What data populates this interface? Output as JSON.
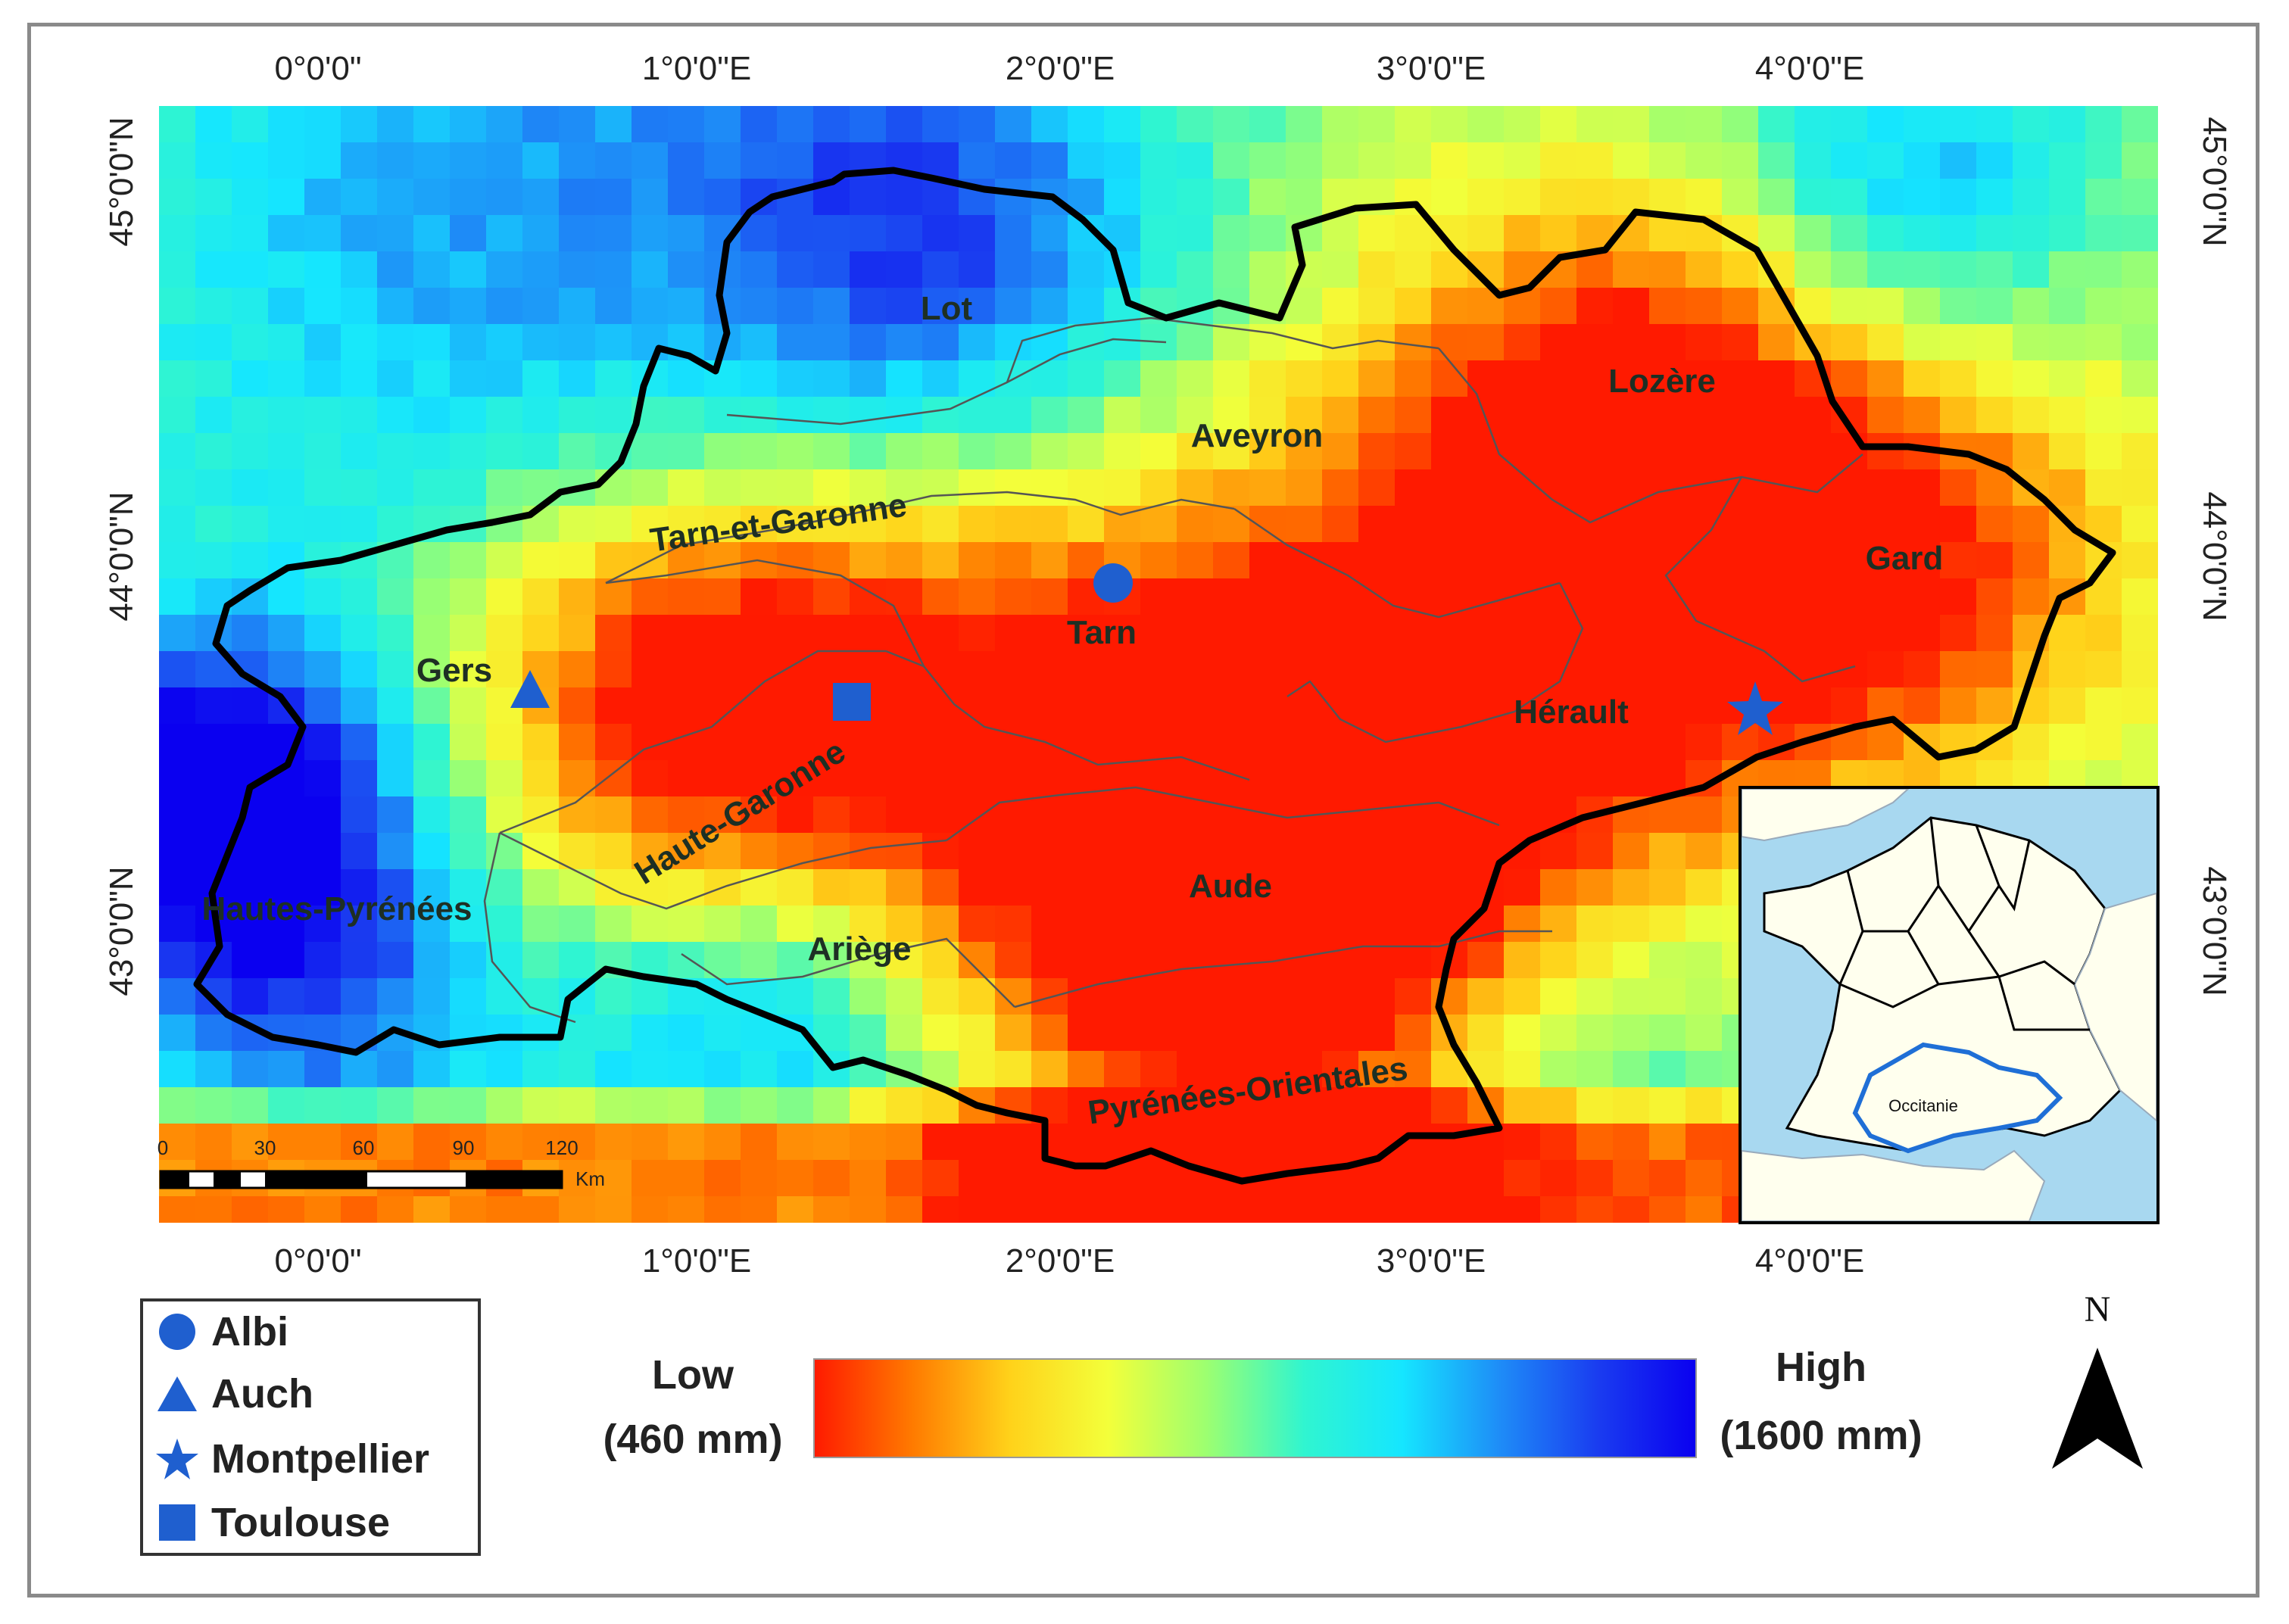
{
  "axes": {
    "lon_ticks": [
      "0°0'0\"",
      "1°0'0\"E",
      "2°0'0\"E",
      "3°0'0\"E",
      "4°0'0\"E"
    ],
    "lat_ticks": [
      "45°0'0\"N",
      "44°0'0\"N",
      "43°0'0\"N"
    ]
  },
  "departments": [
    "Lot",
    "Lozère",
    "Aveyron",
    "Tarn-et-Garonne",
    "Gard",
    "Tarn",
    "Gers",
    "Hérault",
    "Haute-Garonne",
    "Aude",
    "Hautes-Pyrénées",
    "Ariège",
    "Pyrénées-Orientales"
  ],
  "scale_bar": {
    "ticks": [
      "0",
      "30",
      "60",
      "90",
      "120"
    ],
    "unit": "Km"
  },
  "inset": {
    "label": "Occitanie"
  },
  "legend": [
    {
      "name": "Albi",
      "symbol": "circle-icon"
    },
    {
      "name": "Auch",
      "symbol": "triangle-icon"
    },
    {
      "name": "Montpellier",
      "symbol": "star-icon"
    },
    {
      "name": "Toulouse",
      "symbol": "square-icon"
    }
  ],
  "colorbar": {
    "low_label": "Low",
    "low_value": "(460 mm)",
    "high_label": "High",
    "high_value": "(1600 mm)",
    "colors": [
      "#ff1a00",
      "#ff7a00",
      "#ffd21a",
      "#f3ff3a",
      "#9dff70",
      "#30f5d0",
      "#15e6ff",
      "#1e8cf7",
      "#1a3cf0",
      "#0a00f0"
    ]
  },
  "north_arrow": {
    "label": "N"
  },
  "colors": {
    "boundary": "#000000",
    "marker": "#1f5fcf",
    "inset_region": "#1f6fd6"
  }
}
